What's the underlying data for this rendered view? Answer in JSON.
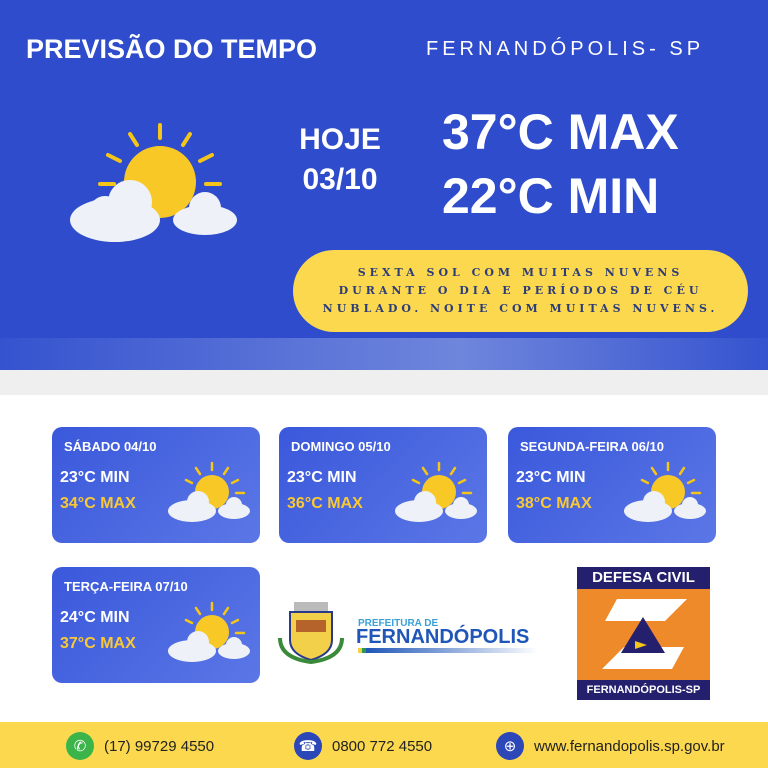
{
  "header": {
    "title": "PREVISÃO DO TEMPO",
    "city": "FERNANDÓPOLIS- SP"
  },
  "today": {
    "label": "HOJE",
    "date": "03/10",
    "max": "37°C MAX",
    "min": "22°C MIN",
    "icon": "sun-cloud-icon",
    "description": "SEXTA SOL COM MUITAS  NUVENS DURANTE O DIA E PERÍODOS DE CÉU NUBLADO. NOITE COM MUITAS NUVENS."
  },
  "forecast": [
    {
      "day": "SÁBADO 04/10",
      "min": "23°C MIN",
      "max": "34°C MAX"
    },
    {
      "day": "DOMINGO 05/10",
      "min": "23°C MIN",
      "max": "36°C MAX"
    },
    {
      "day": "SEGUNDA-FEIRA 06/10",
      "min": "23°C MIN",
      "max": "38°C MAX"
    },
    {
      "day": "TERÇA-FEIRA 07/10",
      "min": "24°C MIN",
      "max": "37°C MAX"
    }
  ],
  "logos": {
    "prefeitura_top": "PREFEITURA DE",
    "prefeitura_name": "FERNANDÓPOLIS",
    "defesa_top": "DEFESA CIVIL",
    "defesa_bottom": "FERNANDÓPOLIS-SP"
  },
  "footer": {
    "whatsapp": "(17) 99729 4550",
    "phone": "0800 772 4550",
    "website": "www.fernandopolis.sp.gov.br"
  },
  "colors": {
    "primary": "#2e4ccb",
    "accent": "#fcd84e",
    "max_temp": "#f9c934",
    "defesa": "#ef8a2a"
  }
}
